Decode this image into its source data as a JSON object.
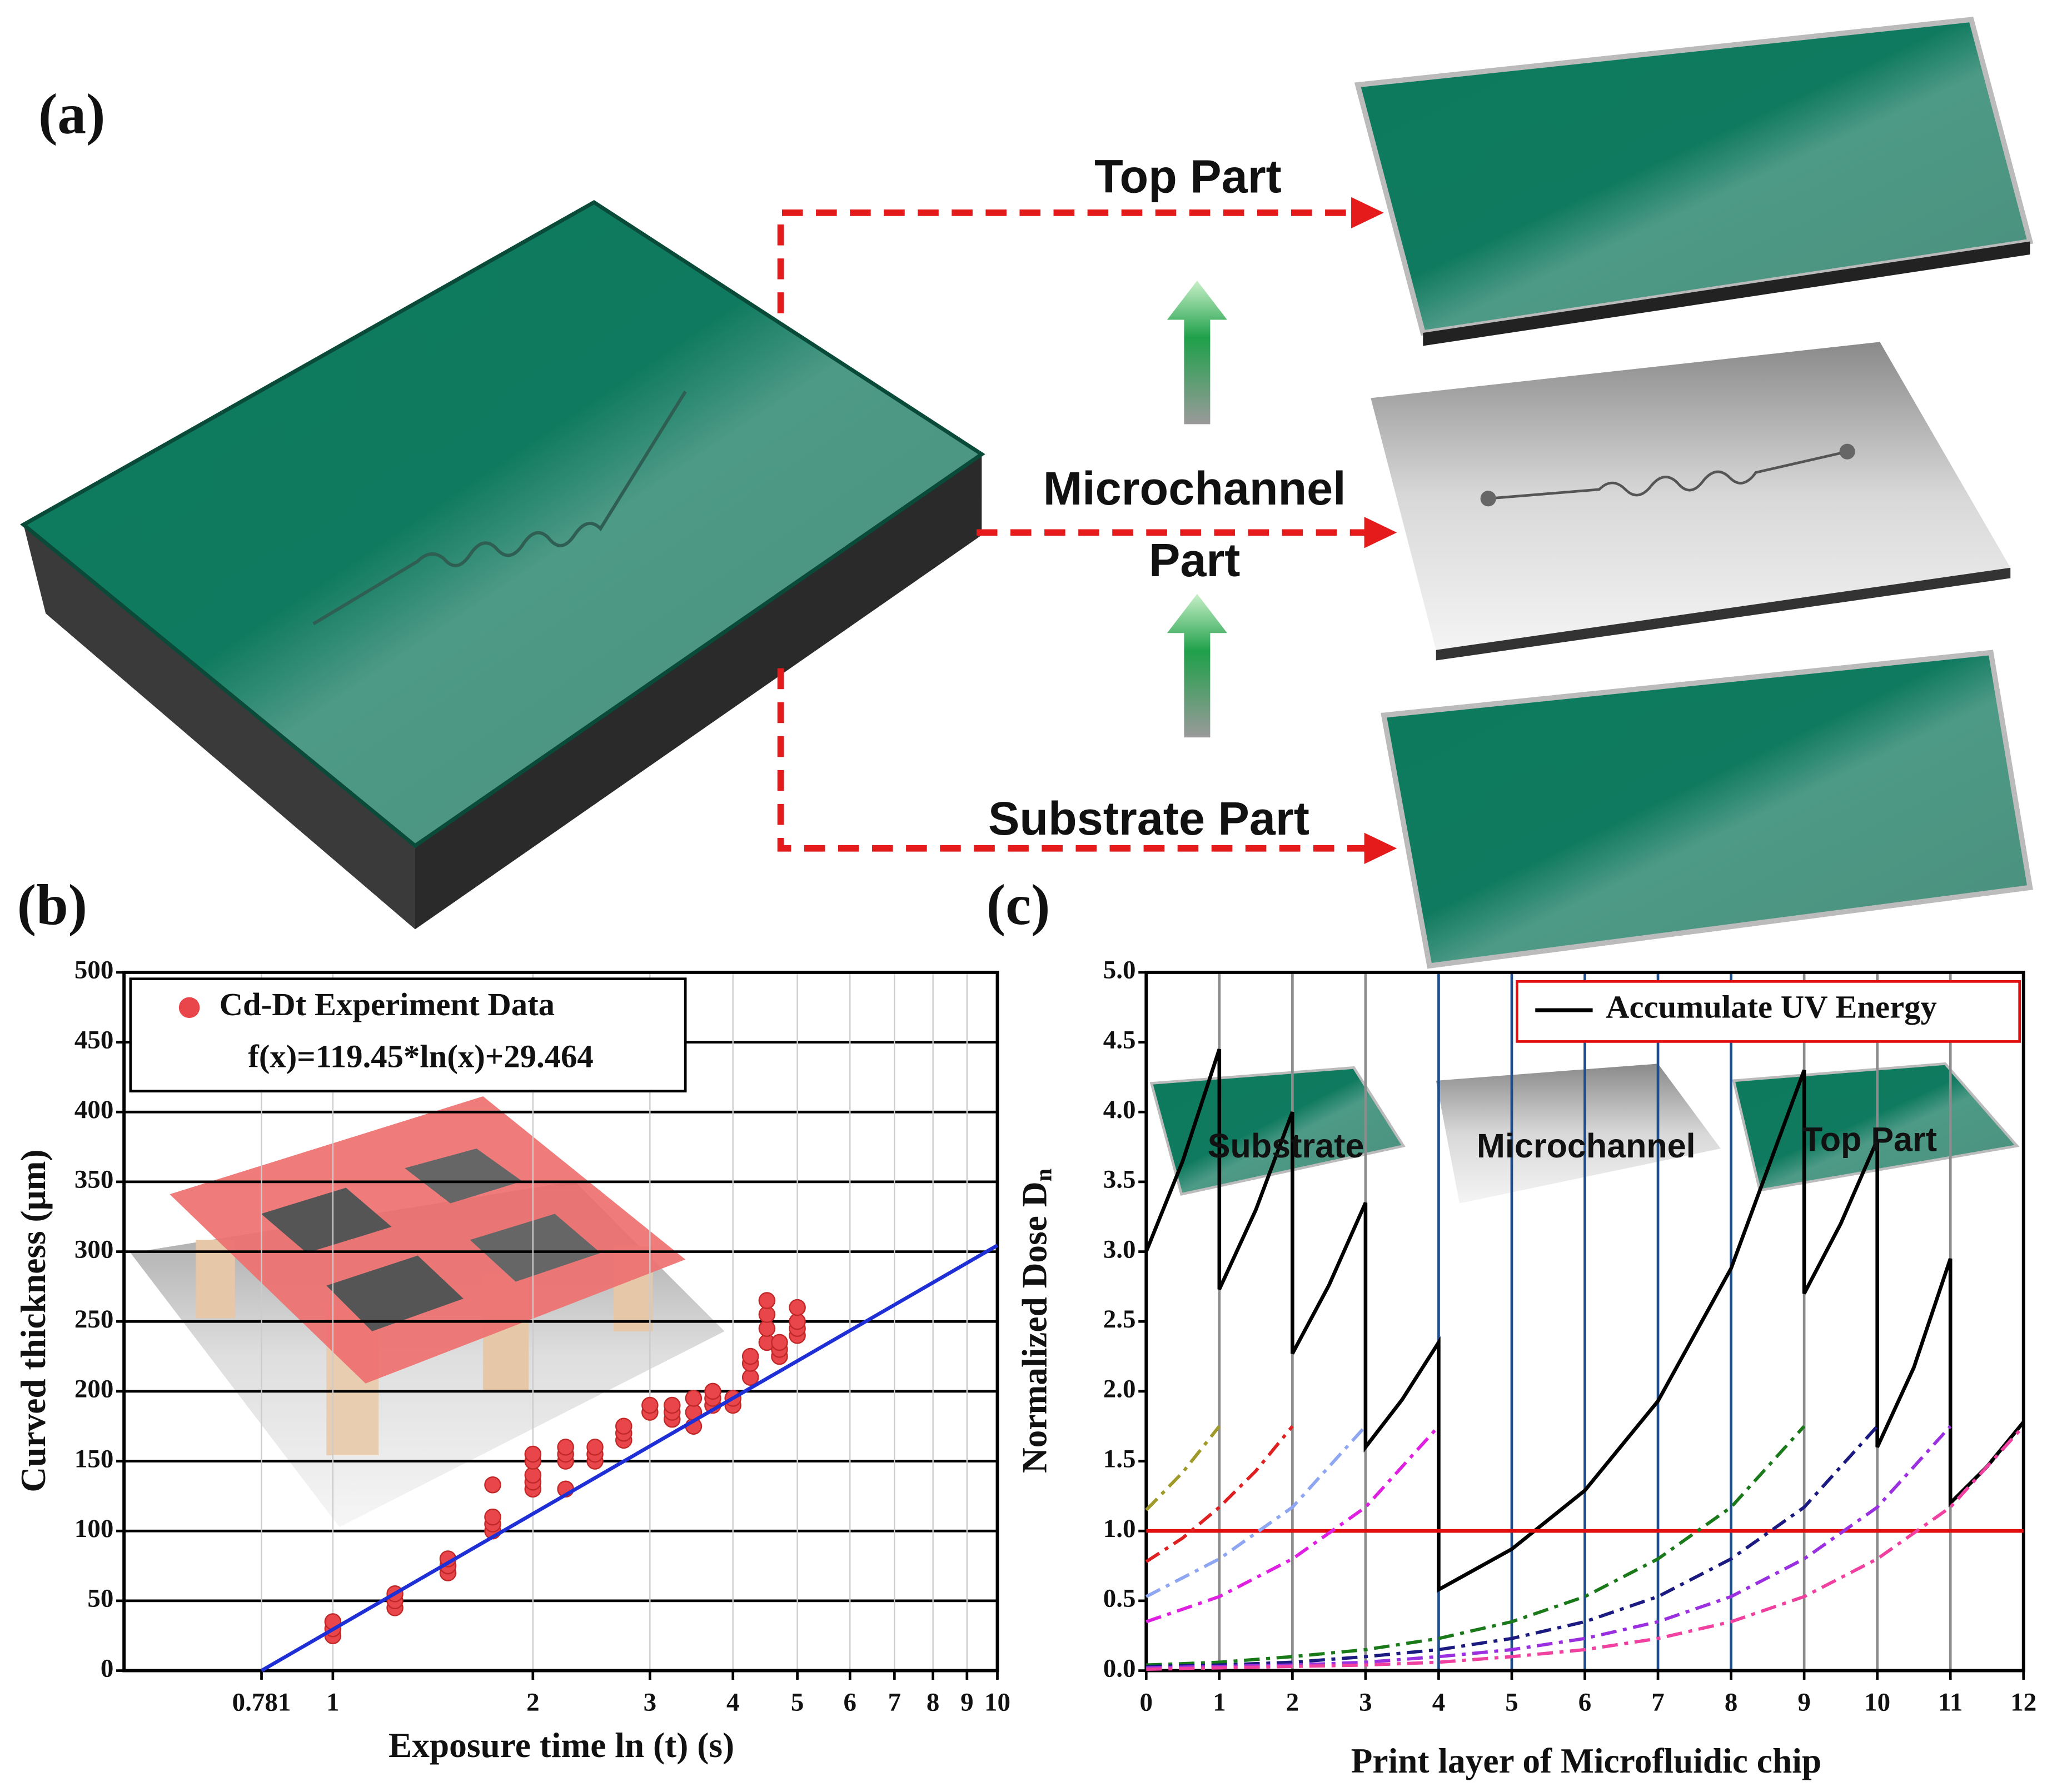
{
  "panel_labels": [
    "(a)",
    "(b)",
    "(c)"
  ],
  "panel_a": {
    "top": "Top Part",
    "middle": [
      "Microchannel",
      "Part"
    ],
    "bottom": "Substrate Part"
  },
  "chart_data": [
    {
      "type": "scatter",
      "xlabel": "Exposure time ln (t) (s)",
      "ylabel": "Curved thickness (μm)",
      "xscale": "log",
      "xlim": [
        0.485,
        10
      ],
      "ylim": [
        0,
        500
      ],
      "xticks": [
        0.781,
        1,
        2,
        3,
        4,
        5,
        6,
        7,
        8,
        9,
        10
      ],
      "yticks": [
        0,
        50,
        100,
        150,
        200,
        250,
        300,
        350,
        400,
        450,
        500
      ],
      "grid": true,
      "legend": "upper left",
      "series": [
        {
          "name": "Cd-Dt Experiment Data",
          "type": "scatter",
          "color": "#e8464a",
          "x": [
            1,
            1,
            1,
            1.24,
            1.24,
            1.24,
            1.49,
            1.49,
            1.49,
            1.74,
            1.74,
            1.74,
            1.74,
            2,
            2,
            2,
            2,
            2,
            2.24,
            2.24,
            2.24,
            2.24,
            2.48,
            2.48,
            2.48,
            2.74,
            2.74,
            2.74,
            3,
            3,
            3.24,
            3.24,
            3.24,
            3.49,
            3.49,
            3.49,
            3.73,
            3.73,
            3.73,
            4,
            4,
            4.25,
            4.25,
            4.25,
            4.5,
            4.5,
            4.5,
            4.5,
            4.7,
            4.7,
            4.7,
            5,
            5,
            5,
            5
          ],
          "values": [
            25,
            30,
            35,
            45,
            50,
            55,
            70,
            75,
            80,
            100,
            105,
            110,
            133,
            130,
            135,
            140,
            150,
            155,
            130,
            150,
            155,
            160,
            150,
            155,
            160,
            165,
            170,
            175,
            185,
            190,
            180,
            185,
            190,
            175,
            185,
            195,
            190,
            195,
            200,
            190,
            195,
            210,
            220,
            225,
            235,
            245,
            255,
            265,
            225,
            230,
            235,
            240,
            245,
            250,
            260
          ]
        },
        {
          "name": "f(x)=119.45*ln(x)+29.464",
          "type": "line",
          "color": "#1f2fd6",
          "x": [
            0.781,
            10
          ],
          "values": [
            0,
            304.5
          ]
        }
      ]
    },
    {
      "type": "line",
      "xlabel": "Print layer of Microfluidic chip",
      "ylabel": "Normalized Dose D",
      "ylabel_subscript": "n",
      "xlim": [
        0,
        12
      ],
      "ylim": [
        0,
        5
      ],
      "xticks": [
        0,
        1,
        2,
        3,
        4,
        5,
        6,
        7,
        8,
        9,
        10,
        11,
        12
      ],
      "yticks": [
        {
          "value": 0,
          "label": "0.0"
        },
        {
          "value": 0.5,
          "label": "0.5"
        },
        {
          "value": 1,
          "label": "1.0"
        },
        {
          "value": 1.5,
          "label": "1.5"
        },
        {
          "value": 2,
          "label": "2.0"
        },
        {
          "value": 2.5,
          "label": "2.5"
        },
        {
          "value": 3,
          "label": "3.0"
        },
        {
          "value": 3.5,
          "label": "3.5"
        },
        {
          "value": 4,
          "label": "4.0"
        },
        {
          "value": 4.5,
          "label": "4.5"
        },
        {
          "value": 5,
          "label": "5.0"
        }
      ],
      "grid": false,
      "legend": "upper right",
      "annotations": [
        "Substrate",
        "Microchannel",
        "Top Part"
      ],
      "vlines": [
        {
          "x": 1,
          "color": "#8c8c8c"
        },
        {
          "x": 2,
          "color": "#8c8c8c"
        },
        {
          "x": 3,
          "color": "#8c8c8c"
        },
        {
          "x": 4,
          "color": "#1f4e8c"
        },
        {
          "x": 5,
          "color": "#1f4e8c"
        },
        {
          "x": 6,
          "color": "#1f4e8c"
        },
        {
          "x": 7,
          "color": "#1f4e8c"
        },
        {
          "x": 8,
          "color": "#1f4e8c"
        },
        {
          "x": 9,
          "color": "#8c8c8c"
        },
        {
          "x": 10,
          "color": "#8c8c8c"
        },
        {
          "x": 11,
          "color": "#8c8c8c"
        }
      ],
      "series": [
        {
          "name": "Accumulate UV Energy",
          "color": "#000000",
          "dash": "solid",
          "x": [
            0,
            0.5,
            1,
            1,
            1.5,
            2,
            2,
            2.5,
            3,
            3,
            3.5,
            4,
            4,
            5,
            6,
            7,
            8,
            9,
            9,
            9.5,
            10,
            10,
            10.5,
            11,
            11,
            11.5,
            12
          ],
          "values": [
            3.0,
            3.65,
            4.45,
            2.73,
            3.3,
            4.0,
            2.27,
            2.76,
            3.35,
            1.6,
            1.94,
            2.35,
            0.58,
            0.87,
            1.29,
            1.93,
            2.88,
            4.3,
            2.7,
            3.2,
            3.8,
            1.6,
            2.17,
            2.95,
            1.2,
            1.46,
            1.78
          ]
        },
        {
          "color": "#e01010",
          "dash": "solid",
          "x": [
            0,
            12
          ],
          "values": [
            1,
            1
          ]
        },
        {
          "color": "#a09a2a",
          "dash": "dashdot",
          "x": [
            0,
            0.5,
            1
          ],
          "values": [
            1.15,
            1.42,
            1.75
          ]
        },
        {
          "color": "#e02020",
          "dash": "dashdot",
          "x": [
            0,
            0.5,
            1,
            1.5,
            2
          ],
          "values": [
            0.78,
            0.95,
            1.17,
            1.43,
            1.75
          ]
        },
        {
          "color": "#8fa6f2",
          "dash": "dashdot",
          "x": [
            0,
            1,
            2,
            3
          ],
          "values": [
            0.53,
            0.8,
            1.17,
            1.75
          ]
        },
        {
          "color": "#e020e0",
          "dash": "dashdot",
          "x": [
            0,
            1,
            2,
            3,
            4
          ],
          "values": [
            0.35,
            0.53,
            0.8,
            1.17,
            1.75
          ]
        },
        {
          "color": "#1a7a1a",
          "dash": "dashdot",
          "x": [
            0,
            1,
            2,
            3,
            4,
            5,
            6,
            7,
            8,
            9
          ],
          "values": [
            0.04,
            0.06,
            0.1,
            0.15,
            0.23,
            0.35,
            0.53,
            0.8,
            1.17,
            1.75
          ]
        },
        {
          "color": "#1a1a80",
          "dash": "dashdot",
          "x": [
            0,
            1,
            2,
            3,
            4,
            5,
            6,
            7,
            8,
            9,
            10
          ],
          "values": [
            0.03,
            0.04,
            0.06,
            0.1,
            0.15,
            0.23,
            0.35,
            0.53,
            0.8,
            1.17,
            1.75
          ]
        },
        {
          "color": "#9a30e0",
          "dash": "dashdot",
          "x": [
            0,
            1,
            2,
            3,
            4,
            5,
            6,
            7,
            8,
            9,
            10,
            11
          ],
          "values": [
            0.02,
            0.03,
            0.04,
            0.06,
            0.1,
            0.15,
            0.23,
            0.35,
            0.53,
            0.8,
            1.17,
            1.75
          ]
        },
        {
          "color": "#f040a0",
          "dash": "dashdot",
          "x": [
            0,
            1,
            2,
            3,
            4,
            5,
            6,
            7,
            8,
            9,
            10,
            11,
            12
          ],
          "values": [
            0.01,
            0.02,
            0.03,
            0.04,
            0.06,
            0.1,
            0.15,
            0.23,
            0.35,
            0.53,
            0.8,
            1.17,
            1.75
          ]
        }
      ]
    }
  ]
}
